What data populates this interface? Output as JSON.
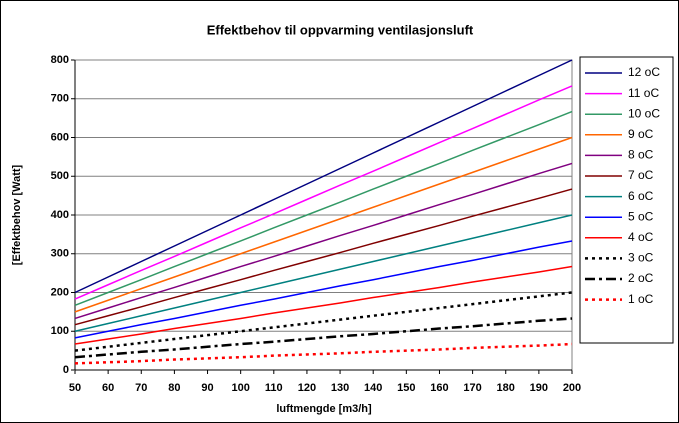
{
  "chart_data": {
    "type": "line",
    "title": "Effektbehov til oppvarming ventilasjonsluft",
    "xlabel": "luftmengde [m3/h]",
    "ylabel": "[Effektbehov [Watt]",
    "x": [
      50,
      60,
      70,
      80,
      90,
      100,
      110,
      120,
      130,
      140,
      150,
      160,
      170,
      180,
      190,
      200
    ],
    "xlim": [
      50,
      200
    ],
    "xticks": [
      50,
      60,
      70,
      80,
      90,
      100,
      110,
      120,
      130,
      140,
      150,
      160,
      170,
      180,
      190,
      200
    ],
    "ylim": [
      0,
      800
    ],
    "yticks": [
      0,
      100,
      200,
      300,
      400,
      500,
      600,
      700,
      800
    ],
    "grid": true,
    "legend": "right",
    "series": [
      {
        "name": "12 oC",
        "color": "#000080",
        "style": "solid",
        "values": [
          200,
          240,
          280,
          320,
          360,
          400,
          440,
          480,
          520,
          560,
          600,
          640,
          680,
          720,
          760,
          800
        ]
      },
      {
        "name": "11 oC",
        "color": "#ff00ff",
        "style": "solid",
        "values": [
          183,
          220,
          257,
          293,
          330,
          367,
          403,
          440,
          477,
          513,
          550,
          587,
          623,
          660,
          697,
          733
        ]
      },
      {
        "name": "10 oC",
        "color": "#339966",
        "style": "solid",
        "values": [
          167,
          200,
          233,
          267,
          300,
          333,
          367,
          400,
          433,
          467,
          500,
          533,
          567,
          600,
          633,
          667
        ]
      },
      {
        "name": "9 oC",
        "color": "#ff6600",
        "style": "solid",
        "values": [
          150,
          180,
          210,
          240,
          270,
          300,
          330,
          360,
          390,
          420,
          450,
          480,
          510,
          540,
          570,
          600
        ]
      },
      {
        "name": "8 oC",
        "color": "#800080",
        "style": "solid",
        "values": [
          133,
          160,
          187,
          213,
          240,
          267,
          293,
          320,
          347,
          373,
          400,
          427,
          453,
          480,
          507,
          533
        ]
      },
      {
        "name": "7 oC",
        "color": "#800000",
        "style": "solid",
        "values": [
          117,
          140,
          163,
          187,
          210,
          233,
          257,
          280,
          303,
          327,
          350,
          373,
          397,
          420,
          443,
          467
        ]
      },
      {
        "name": "6 oC",
        "color": "#008080",
        "style": "solid",
        "values": [
          100,
          120,
          140,
          160,
          180,
          200,
          220,
          240,
          260,
          280,
          300,
          320,
          340,
          360,
          380,
          400
        ]
      },
      {
        "name": "5 oC",
        "color": "#0000ff",
        "style": "solid",
        "values": [
          83,
          100,
          117,
          133,
          150,
          167,
          183,
          200,
          217,
          233,
          250,
          267,
          283,
          300,
          317,
          333
        ]
      },
      {
        "name": "4 oC",
        "color": "#ff0000",
        "style": "solid",
        "values": [
          67,
          80,
          93,
          107,
          120,
          133,
          147,
          160,
          173,
          187,
          200,
          213,
          227,
          240,
          253,
          267
        ]
      },
      {
        "name": "3 oC",
        "color": "#000000",
        "style": "dotted",
        "values": [
          50,
          60,
          70,
          80,
          90,
          100,
          110,
          120,
          130,
          140,
          150,
          160,
          170,
          180,
          190,
          200
        ]
      },
      {
        "name": "2 oC",
        "color": "#000000",
        "style": "dashdot",
        "values": [
          33,
          40,
          47,
          53,
          60,
          67,
          73,
          80,
          87,
          93,
          100,
          107,
          113,
          120,
          127,
          133
        ]
      },
      {
        "name": "1 oC",
        "color": "#ff0000",
        "style": "dotted",
        "values": [
          17,
          20,
          23,
          27,
          30,
          33,
          37,
          40,
          43,
          47,
          50,
          53,
          57,
          60,
          63,
          67
        ]
      }
    ]
  }
}
